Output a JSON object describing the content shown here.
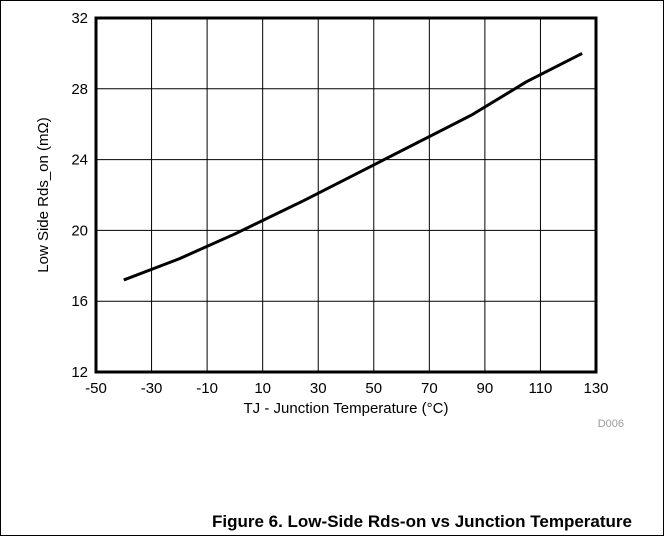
{
  "chart_data": {
    "type": "line",
    "title": "",
    "xlabel": "TJ - Junction Temperature (°C)",
    "ylabel": "Low Side Rds_on (mΩ)",
    "xlim": [
      -50,
      130
    ],
    "ylim": [
      12,
      32
    ],
    "x_ticks": [
      -50,
      -30,
      -10,
      10,
      30,
      50,
      70,
      90,
      110,
      130
    ],
    "y_ticks": [
      12,
      16,
      20,
      24,
      28,
      32
    ],
    "grid": true,
    "legend": "none",
    "series": [
      {
        "color": "#000000",
        "x": [
          -40,
          -20,
          0,
          25,
          50,
          85,
          105,
          125
        ],
        "y": [
          17.2,
          18.4,
          19.8,
          21.7,
          23.7,
          26.5,
          28.4,
          30.0
        ]
      }
    ]
  },
  "source_id": "D006",
  "caption": "Figure 6. Low-Side Rds-on vs Junction Temperature"
}
